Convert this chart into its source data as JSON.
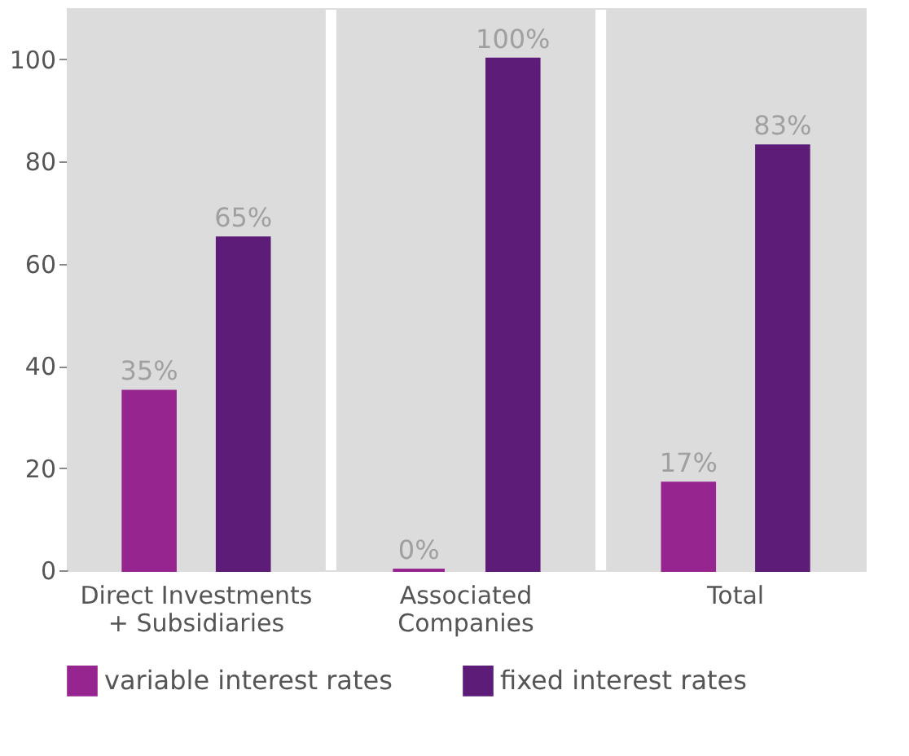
{
  "chart_data": {
    "type": "bar",
    "categories": [
      "Direct Investments\n+ Subsidiaries",
      "Associated\nCompanies",
      "Total"
    ],
    "series": [
      {
        "name": "variable interest rates",
        "color": "#962590",
        "values": [
          35,
          0,
          17
        ],
        "value_labels": [
          "35%",
          "0%",
          "17%"
        ]
      },
      {
        "name": "fixed interest rates",
        "color": "#5e1c79",
        "values": [
          65,
          100,
          83
        ],
        "value_labels": [
          "65%",
          "100%",
          "83%"
        ]
      }
    ],
    "bands": [
      {
        "axis": "x",
        "from": "Direct Investments\n+ Subsidiaries",
        "to": "Direct Investments\n+ Subsidiaries",
        "color": "#dcdcdc"
      },
      {
        "axis": "x",
        "from": "Associated\nCompanies",
        "to": "Associated\nCompanies",
        "color": "#dcdcdc"
      },
      {
        "axis": "x",
        "from": "Total",
        "to": "Total",
        "color": "#dcdcdc"
      }
    ],
    "ylim": [
      0,
      110
    ],
    "yticks": [
      0,
      20,
      40,
      60,
      80,
      100
    ],
    "grid": false,
    "legend": "bottom"
  }
}
